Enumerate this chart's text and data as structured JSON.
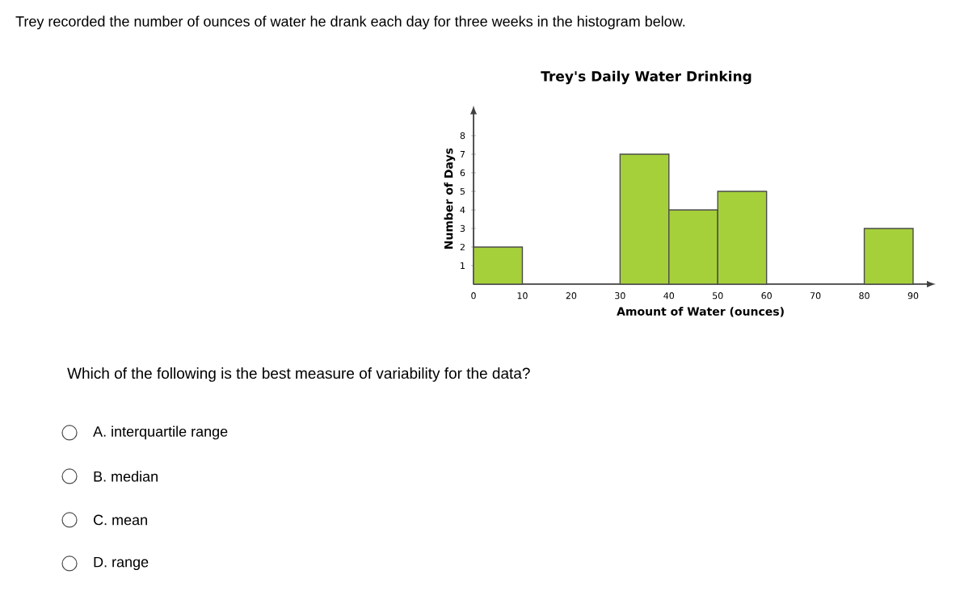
{
  "chart_data": {
    "type": "histogram",
    "title": "Trey's Daily Water Drinking",
    "xlabel": "Amount of Water (ounces)",
    "ylabel": "Number of Days",
    "bins": [
      0,
      10,
      20,
      30,
      40,
      50,
      60,
      70,
      80,
      90
    ],
    "values": [
      2,
      0,
      0,
      7,
      4,
      5,
      0,
      0,
      3
    ],
    "color": "#a6d03a",
    "xlim": [
      0,
      93
    ],
    "ylim": [
      0,
      9.2
    ],
    "xticks": [
      0,
      10,
      20,
      30,
      40,
      50,
      60,
      70,
      80,
      90
    ],
    "yticks": [
      1,
      2,
      3,
      4,
      5,
      6,
      7,
      8
    ],
    "grid": false,
    "annotations": [
      "Trey recorded the number of ounces of water he drank each day for three weeks in the histogram below.",
      "Which of the following is the best measure of variability for the data?",
      "A.   interquartile range",
      "B.   median",
      "C.   mean",
      "D.   range"
    ]
  }
}
